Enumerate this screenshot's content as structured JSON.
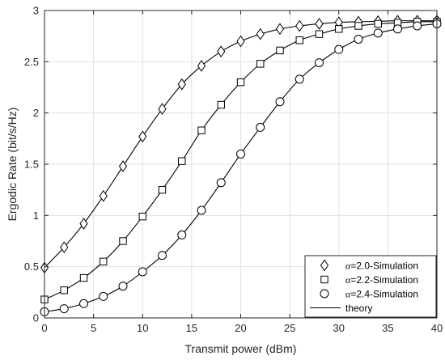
{
  "chart_data": {
    "type": "line",
    "xlabel": "Transmit power (dBm)",
    "ylabel": "Ergodic Rate (bit/s/Hz)",
    "xlim": [
      0,
      40
    ],
    "ylim": [
      0,
      3
    ],
    "xticks": [
      0,
      5,
      10,
      15,
      20,
      25,
      30,
      35,
      40
    ],
    "yticks": [
      0,
      0.5,
      1,
      1.5,
      2,
      2.5,
      3
    ],
    "ytick_labels": [
      "0",
      "0.5",
      "1",
      "1.5",
      "2",
      "2.5",
      "3"
    ],
    "grid": true,
    "legend_position": "bottom-right",
    "x": [
      0,
      2,
      4,
      6,
      8,
      10,
      12,
      14,
      16,
      18,
      20,
      22,
      24,
      26,
      28,
      30,
      32,
      34,
      36,
      38,
      40
    ],
    "series": [
      {
        "name": "α=2.0-Simulation",
        "alpha_symbol": "α",
        "alpha_suffix": "=2.0-Simulation",
        "marker": "diamond",
        "values": [
          0.49,
          0.69,
          0.92,
          1.19,
          1.48,
          1.77,
          2.04,
          2.28,
          2.46,
          2.6,
          2.7,
          2.77,
          2.82,
          2.85,
          2.87,
          2.885,
          2.89,
          2.895,
          2.9,
          2.9,
          2.9
        ]
      },
      {
        "name": "α=2.2-Simulation",
        "alpha_symbol": "α",
        "alpha_suffix": "=2.2-Simulation",
        "marker": "square",
        "values": [
          0.18,
          0.27,
          0.39,
          0.55,
          0.75,
          0.99,
          1.25,
          1.53,
          1.83,
          2.08,
          2.3,
          2.48,
          2.61,
          2.71,
          2.77,
          2.82,
          2.85,
          2.87,
          2.88,
          2.89,
          2.89
        ]
      },
      {
        "name": "α=2.4-Simulation",
        "alpha_symbol": "α",
        "alpha_suffix": "=2.4-Simulation",
        "marker": "circle",
        "values": [
          0.06,
          0.09,
          0.14,
          0.21,
          0.31,
          0.45,
          0.61,
          0.81,
          1.05,
          1.32,
          1.6,
          1.86,
          2.11,
          2.33,
          2.49,
          2.62,
          2.72,
          2.78,
          2.82,
          2.85,
          2.87
        ]
      }
    ],
    "theory_label": "theory"
  }
}
